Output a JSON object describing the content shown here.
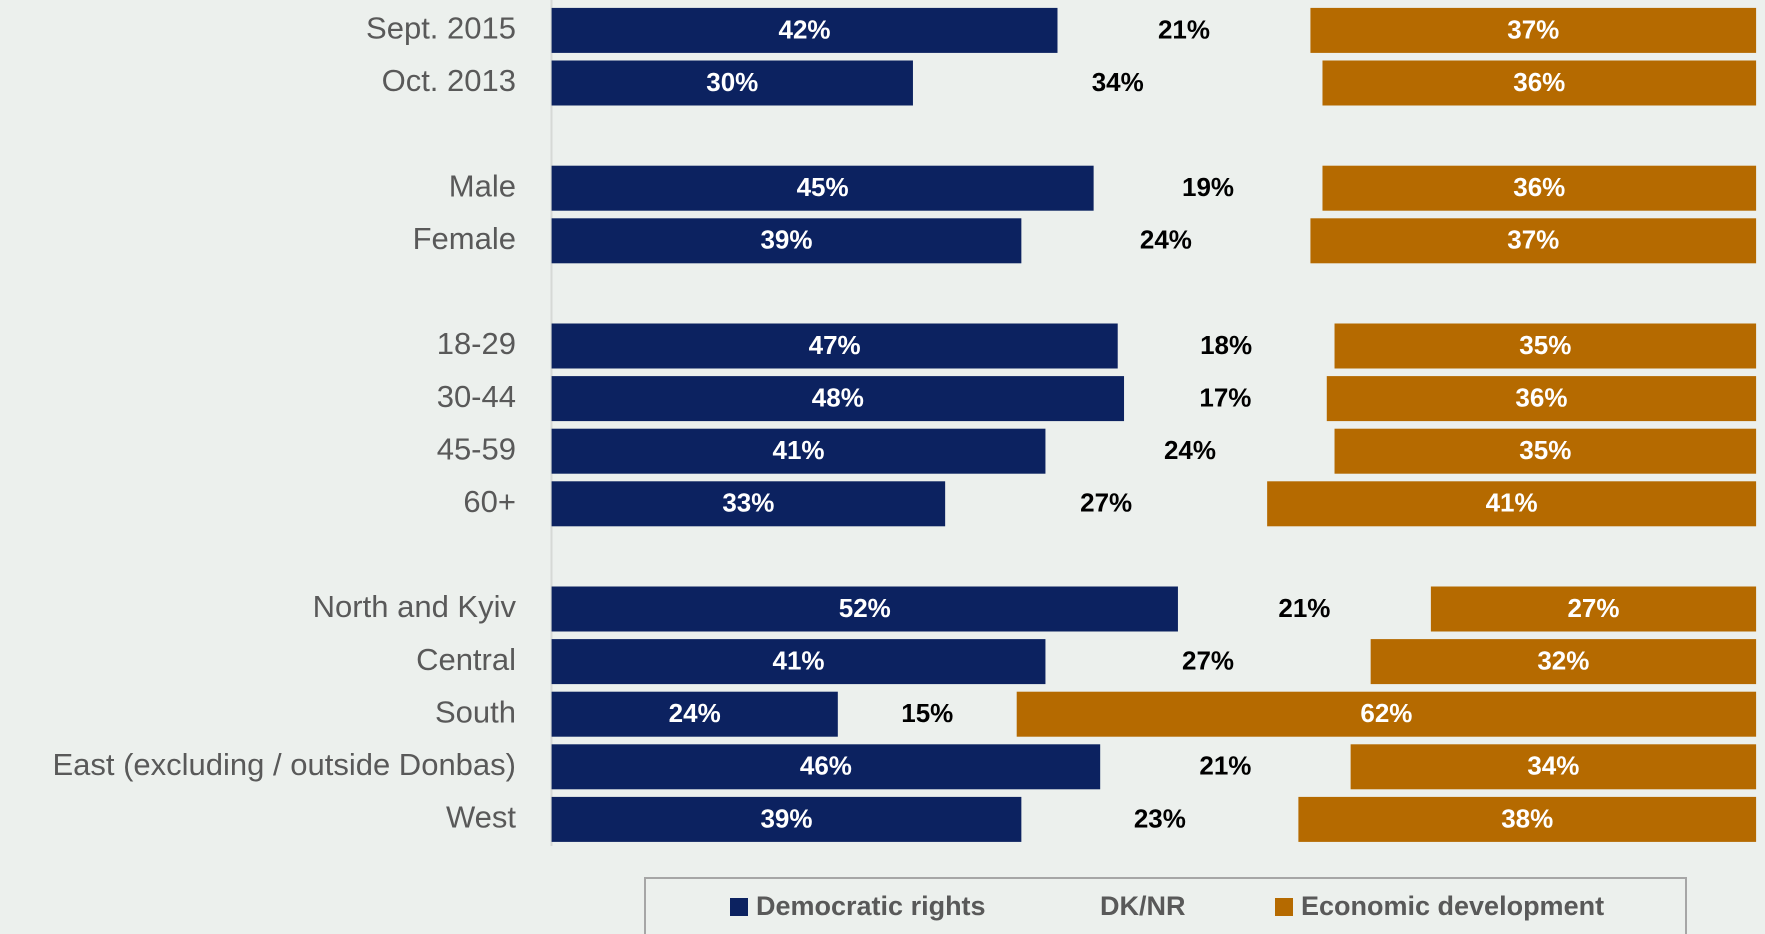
{
  "chart_data": {
    "type": "stacked_bar",
    "orientation": "horizontal",
    "categories": [
      "Sept. 2015",
      "Oct. 2013",
      null,
      "Male",
      "Female",
      null,
      "18-29",
      "30-44",
      "45-59",
      "60+",
      null,
      "North and Kyiv",
      "Central",
      "South",
      "East (excluding / outside Donbas)",
      "West"
    ],
    "series": [
      {
        "name": "Democratic rights",
        "color": "#0c2260",
        "values": [
          42,
          30,
          null,
          45,
          39,
          null,
          47,
          48,
          41,
          33,
          null,
          52,
          41,
          24,
          46,
          39
        ],
        "value_labels": [
          "42%",
          "30%",
          null,
          "45%",
          "39%",
          null,
          "47%",
          "48%",
          "41%",
          "33%",
          null,
          "52%",
          "41%",
          "24%",
          "46%",
          "39%"
        ]
      },
      {
        "name": "DK/NR",
        "color": "none",
        "values": [
          21,
          34,
          null,
          19,
          24,
          null,
          18,
          17,
          24,
          27,
          null,
          21,
          27,
          15,
          21,
          23
        ],
        "value_labels": [
          "21%",
          "34%",
          null,
          "19%",
          "24%",
          null,
          "18%",
          "17%",
          "24%",
          "27%",
          null,
          "21%",
          "27%",
          "15%",
          "21%",
          "23%"
        ]
      },
      {
        "name": "Economic development",
        "color": "#b56a00",
        "values": [
          37,
          36,
          null,
          36,
          37,
          null,
          35,
          36,
          35,
          41,
          null,
          27,
          32,
          62,
          34,
          38
        ],
        "value_labels": [
          "37%",
          "36%",
          null,
          "36%",
          "37%",
          null,
          "35%",
          "36%",
          "35%",
          "41%",
          null,
          "27%",
          "32%",
          "62%",
          "34%",
          "38%"
        ]
      }
    ],
    "legend": "bottom"
  }
}
